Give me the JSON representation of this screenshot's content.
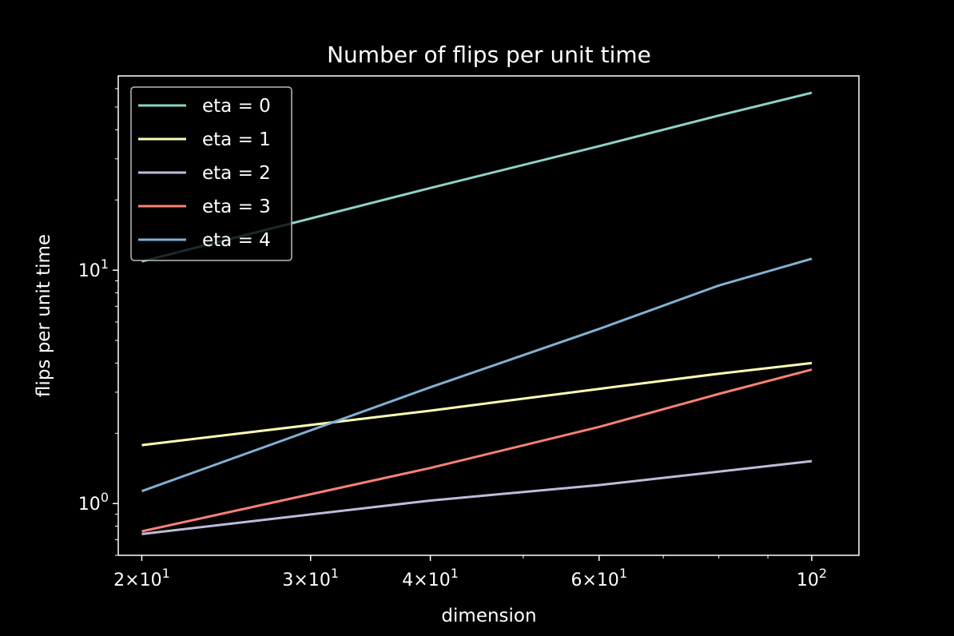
{
  "chart_data": {
    "type": "line",
    "title": "Number of flips per unit time",
    "xlabel": "dimension",
    "ylabel": "flips per unit time",
    "xscale": "log",
    "yscale": "log",
    "xlim": [
      18.9,
      112
    ],
    "ylim": [
      0.6,
      68
    ],
    "grid": false,
    "legend_position": "top-left",
    "x_ticks": [
      {
        "value": 20,
        "mantissa": "2",
        "exponent": "1"
      },
      {
        "value": 30,
        "mantissa": "3",
        "exponent": "1"
      },
      {
        "value": 40,
        "mantissa": "4",
        "exponent": "1"
      },
      {
        "value": 60,
        "mantissa": "6",
        "exponent": "1"
      },
      {
        "value": 100,
        "mantissa": "",
        "exponent": "2"
      }
    ],
    "y_ticks": [
      {
        "value": 1,
        "base": "10",
        "exponent": "0"
      },
      {
        "value": 10,
        "base": "10",
        "exponent": "1"
      }
    ],
    "series": [
      {
        "name": "eta = 0",
        "color": "#8dd3c7",
        "x": [
          20,
          40,
          60,
          80,
          100
        ],
        "y": [
          10.9,
          22.5,
          34.0,
          46.0,
          57.6
        ]
      },
      {
        "name": "eta = 1",
        "color": "#feffb3",
        "x": [
          20,
          40,
          60,
          80,
          100
        ],
        "y": [
          1.78,
          2.5,
          3.1,
          3.6,
          4.0
        ]
      },
      {
        "name": "eta = 2",
        "color": "#bfbbd9",
        "x": [
          20,
          40,
          60,
          80,
          100
        ],
        "y": [
          0.74,
          1.03,
          1.2,
          1.37,
          1.52
        ]
      },
      {
        "name": "eta = 3",
        "color": "#fa8174",
        "x": [
          20,
          40,
          60,
          80,
          100
        ],
        "y": [
          0.76,
          1.42,
          2.13,
          2.95,
          3.75
        ]
      },
      {
        "name": "eta = 4",
        "color": "#81b1d2",
        "x": [
          20,
          40,
          60,
          80,
          100
        ],
        "y": [
          1.13,
          3.15,
          5.6,
          8.6,
          11.2
        ]
      }
    ]
  }
}
